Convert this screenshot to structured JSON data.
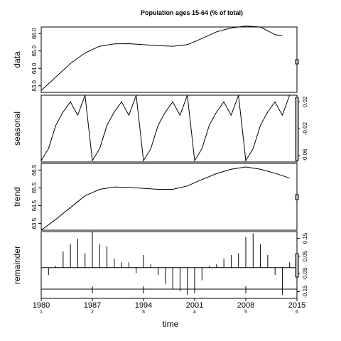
{
  "chart_data": {
    "type": "line",
    "title": "Population ages 15-64 (% of total)",
    "xlabel": "time",
    "x_ticks": [
      "1980",
      "1987",
      "1994",
      "2001",
      "2008",
      "2015"
    ],
    "x_sub_ticks": [
      "1",
      "2",
      "3",
      "4",
      "5",
      "6"
    ],
    "xlim": [
      1980,
      2015
    ],
    "panels": [
      {
        "name": "data",
        "ylim": [
          62.9,
          66.3
        ],
        "y_ticks": [
          "63.0",
          "64.0",
          "65.0",
          "66.0"
        ],
        "x": [
          1980,
          1982,
          1984,
          1986,
          1988,
          1990,
          1992,
          1994,
          1996,
          1998,
          2000,
          2002,
          2004,
          2006,
          2008,
          2010,
          2012,
          2013
        ],
        "values": [
          63.0,
          63.7,
          64.4,
          64.95,
          65.3,
          65.42,
          65.43,
          65.38,
          65.33,
          65.3,
          65.38,
          65.7,
          66.05,
          66.25,
          66.35,
          66.3,
          65.9,
          65.85
        ]
      },
      {
        "name": "seasonal",
        "ylim": [
          -0.07,
          0.03
        ],
        "y_ticks": [
          "-0.06",
          "-0.02",
          "0.02"
        ],
        "x": [
          1980,
          1981,
          1982,
          1983,
          1984,
          1985,
          1986,
          1987,
          1988,
          1989,
          1990,
          1991,
          1992,
          1993,
          1994,
          1995,
          1996,
          1997,
          1998,
          1999,
          2000,
          2001,
          2002,
          2003,
          2004,
          2005,
          2006,
          2007,
          2008,
          2009,
          2010,
          2011,
          2012,
          2013,
          2014
        ],
        "values": [
          -0.068,
          -0.05,
          -0.015,
          0.005,
          0.02,
          0.0,
          0.03,
          -0.068,
          -0.05,
          -0.015,
          0.005,
          0.02,
          0.0,
          0.03,
          -0.068,
          -0.05,
          -0.015,
          0.005,
          0.02,
          0.0,
          0.03,
          -0.068,
          -0.05,
          -0.015,
          0.005,
          0.02,
          0.0,
          0.03,
          -0.068,
          -0.05,
          -0.015,
          0.005,
          0.02,
          0.0,
          0.03
        ]
      },
      {
        "name": "trend",
        "ylim": [
          63.2,
          66.6
        ],
        "y_ticks": [
          "63.5",
          "64.5",
          "65.5",
          "66.5"
        ],
        "x": [
          1980,
          1982,
          1984,
          1986,
          1988,
          1990,
          1992,
          1994,
          1996,
          1998,
          2000,
          2002,
          2004,
          2006,
          2008,
          2010,
          2012,
          2014
        ],
        "values": [
          63.2,
          63.75,
          64.35,
          64.95,
          65.28,
          65.4,
          65.38,
          65.33,
          65.28,
          65.28,
          65.45,
          65.78,
          66.08,
          66.3,
          66.42,
          66.3,
          66.1,
          65.85
        ]
      },
      {
        "name": "remainder",
        "type": "bar",
        "ylim": [
          -0.17,
          0.2
        ],
        "y_ticks": [
          "-0.15",
          "-0.05",
          "0.05",
          "0.15"
        ],
        "x": [
          1980,
          1981,
          1982,
          1983,
          1984,
          1985,
          1986,
          1987,
          1988,
          1989,
          1990,
          1991,
          1992,
          1993,
          1994,
          1995,
          1996,
          1997,
          1998,
          1999,
          2000,
          2001,
          2002,
          2003,
          2004,
          2005,
          2006,
          2007,
          2008,
          2009,
          2010,
          2011,
          2012,
          2013,
          2014
        ],
        "values": [
          -0.09,
          -0.04,
          0.01,
          0.09,
          0.13,
          0.16,
          0.08,
          0.2,
          0.13,
          0.12,
          0.05,
          0.03,
          0.03,
          -0.03,
          0.07,
          0.02,
          -0.04,
          -0.09,
          -0.12,
          -0.13,
          -0.15,
          -0.12,
          -0.07,
          0.01,
          0.02,
          0.05,
          0.07,
          0.08,
          0.17,
          0.19,
          0.13,
          0.07,
          -0.04,
          -0.15,
          0.03
        ]
      }
    ]
  }
}
